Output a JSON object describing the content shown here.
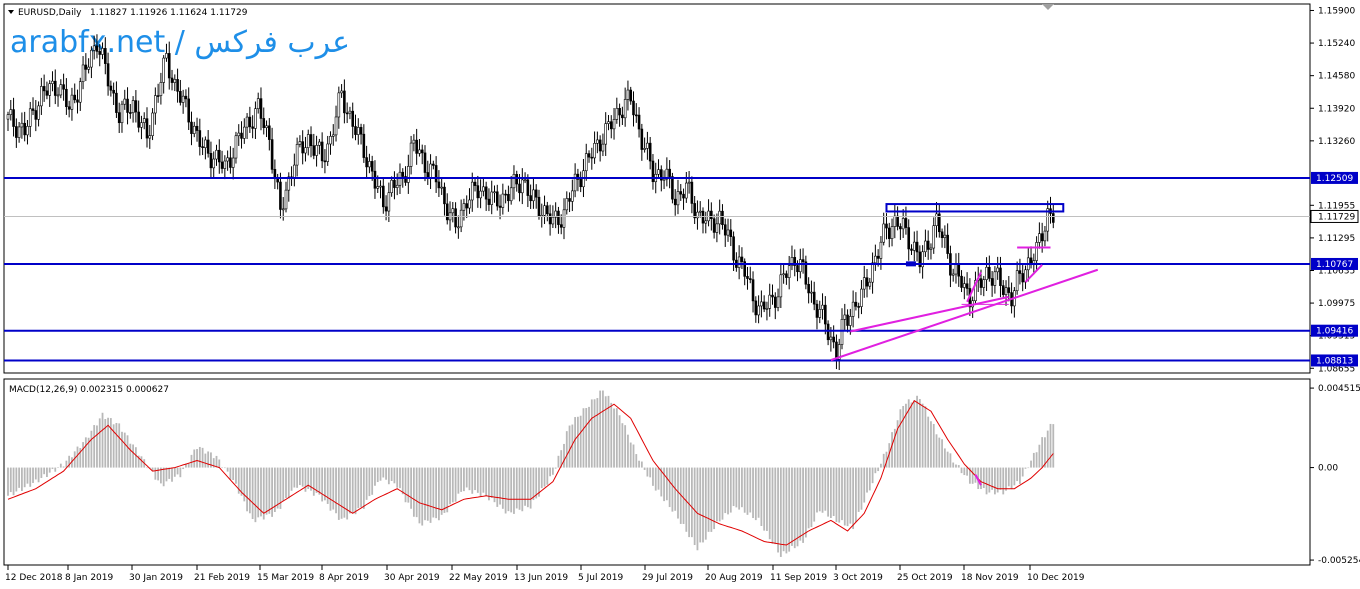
{
  "header": {
    "symbol": "EURUSD,Daily",
    "ohlc": "1.11827 1.11926 1.11624 1.11729"
  },
  "watermark": "arabfx.net / عرب فركس",
  "macd_header": "MACD(12,26,9) 0.002315 0.000627",
  "colors": {
    "candle": "#000000",
    "level_line": "#0000c8",
    "trend_line": "#e020e0",
    "macd_hist": "#b8b8b8",
    "macd_signal": "#e00000",
    "tag_bg": "#0000c8"
  },
  "chart_data": {
    "type": "candlestick",
    "price_axis_ticks": [
      "1.15900",
      "1.15240",
      "1.14580",
      "1.13920",
      "1.13260",
      "1.11955",
      "1.11295",
      "1.10635",
      "1.09975",
      "1.09315",
      "1.08655"
    ],
    "price_range": [
      1.0862,
      1.1595
    ],
    "current_price": "1.11729",
    "horizontal_levels": [
      {
        "price": 1.12509,
        "label": "1.12509"
      },
      {
        "price": 1.10767,
        "label": "1.10767"
      },
      {
        "price": 1.09416,
        "label": "1.09416"
      },
      {
        "price": 1.08813,
        "label": "1.08813"
      }
    ],
    "date_ticks": [
      "12 Dec 2018",
      "8 Jan 2019",
      "30 Jan 2019",
      "21 Feb 2019",
      "15 Mar 2019",
      "8 Apr 2019",
      "30 Apr 2019",
      "22 May 2019",
      "13 Jun 2019",
      "5 Jul 2019",
      "29 Jul 2019",
      "20 Aug 2019",
      "11 Sep 2019",
      "3 Oct 2019",
      "25 Oct 2019",
      "18 Nov 2019",
      "10 Dec 2019"
    ],
    "close_path": [
      [
        0,
        1.137
      ],
      [
        6,
        1.1345
      ],
      [
        12,
        1.142
      ],
      [
        18,
        1.144
      ],
      [
        22,
        1.139
      ],
      [
        28,
        1.147
      ],
      [
        32,
        1.153
      ],
      [
        37,
        1.143
      ],
      [
        40,
        1.138
      ],
      [
        45,
        1.14
      ],
      [
        50,
        1.133
      ],
      [
        53,
        1.141
      ],
      [
        57,
        1.149
      ],
      [
        60,
        1.144
      ],
      [
        64,
        1.139
      ],
      [
        70,
        1.131
      ],
      [
        75,
        1.129
      ],
      [
        78,
        1.127
      ],
      [
        82,
        1.132
      ],
      [
        86,
        1.136
      ],
      [
        90,
        1.139
      ],
      [
        94,
        1.133
      ],
      [
        98,
        1.118
      ],
      [
        103,
        1.129
      ],
      [
        108,
        1.133
      ],
      [
        113,
        1.129
      ],
      [
        116,
        1.133
      ],
      [
        120,
        1.142
      ],
      [
        124,
        1.136
      ],
      [
        128,
        1.131
      ],
      [
        132,
        1.124
      ],
      [
        135,
        1.12
      ],
      [
        138,
        1.123
      ],
      [
        142,
        1.125
      ],
      [
        146,
        1.132
      ],
      [
        150,
        1.128
      ],
      [
        154,
        1.125
      ],
      [
        158,
        1.119
      ],
      [
        161,
        1.115
      ],
      [
        165,
        1.121
      ],
      [
        170,
        1.123
      ],
      [
        175,
        1.12
      ],
      [
        180,
        1.122
      ],
      [
        185,
        1.125
      ],
      [
        188,
        1.121
      ],
      [
        192,
        1.119
      ],
      [
        196,
        1.116
      ],
      [
        200,
        1.118
      ],
      [
        204,
        1.124
      ],
      [
        208,
        1.128
      ],
      [
        212,
        1.132
      ],
      [
        216,
        1.135
      ],
      [
        220,
        1.139
      ],
      [
        224,
        1.141
      ],
      [
        228,
        1.133
      ],
      [
        232,
        1.126
      ],
      [
        236,
        1.126
      ],
      [
        240,
        1.121
      ],
      [
        244,
        1.123
      ],
      [
        248,
        1.118
      ],
      [
        252,
        1.116
      ],
      [
        256,
        1.117
      ],
      [
        259,
        1.113
      ],
      [
        262,
        1.109
      ],
      [
        265,
        1.106
      ],
      [
        268,
        1.101
      ],
      [
        271,
        1.098
      ],
      [
        274,
        1.1
      ],
      [
        277,
        1.102
      ],
      [
        280,
        1.106
      ],
      [
        283,
        1.109
      ],
      [
        286,
        1.106
      ],
      [
        289,
        1.101
      ],
      [
        292,
        1.098
      ],
      [
        295,
        1.094
      ],
      [
        298,
        1.09
      ],
      [
        301,
        1.096
      ],
      [
        304,
        1.099
      ],
      [
        307,
        1.101
      ],
      [
        310,
        1.106
      ],
      [
        313,
        1.11
      ],
      [
        316,
        1.115
      ],
      [
        319,
        1.116
      ],
      [
        322,
        1.115
      ],
      [
        325,
        1.112
      ],
      [
        328,
        1.108
      ],
      [
        331,
        1.112
      ],
      [
        334,
        1.116
      ],
      [
        337,
        1.112
      ],
      [
        340,
        1.106
      ],
      [
        343,
        1.104
      ],
      [
        346,
        1.101
      ],
      [
        349,
        1.103
      ],
      [
        352,
        1.106
      ],
      [
        355,
        1.105
      ],
      [
        358,
        1.103
      ],
      [
        361,
        1.101
      ],
      [
        364,
        1.105
      ],
      [
        367,
        1.108
      ],
      [
        370,
        1.11
      ],
      [
        372,
        1.114
      ],
      [
        374,
        1.118
      ],
      [
        376,
        1.1173
      ]
    ],
    "macd_range": [
      -0.00525,
      0.00452
    ],
    "macd_axis_ticks": [
      "0.004515",
      "0.00",
      "-0.005254"
    ],
    "macd_hist_path": [
      [
        0,
        -0.0016
      ],
      [
        10,
        -0.0008
      ],
      [
        20,
        0.0002
      ],
      [
        28,
        0.0016
      ],
      [
        34,
        0.003
      ],
      [
        40,
        0.0024
      ],
      [
        48,
        0.0006
      ],
      [
        55,
        -0.001
      ],
      [
        62,
        -0.0004
      ],
      [
        68,
        0.0012
      ],
      [
        75,
        0.0006
      ],
      [
        82,
        -0.001
      ],
      [
        88,
        -0.003
      ],
      [
        96,
        -0.0026
      ],
      [
        104,
        -0.001
      ],
      [
        112,
        -0.0016
      ],
      [
        120,
        -0.003
      ],
      [
        128,
        -0.0022
      ],
      [
        134,
        -0.0006
      ],
      [
        140,
        -0.001
      ],
      [
        148,
        -0.0032
      ],
      [
        156,
        -0.0028
      ],
      [
        164,
        -0.0012
      ],
      [
        172,
        -0.0016
      ],
      [
        180,
        -0.0026
      ],
      [
        188,
        -0.0022
      ],
      [
        196,
        -0.0004
      ],
      [
        202,
        0.0024
      ],
      [
        208,
        0.0034
      ],
      [
        214,
        0.0044
      ],
      [
        220,
        0.003
      ],
      [
        226,
        0.0008
      ],
      [
        232,
        -0.001
      ],
      [
        240,
        -0.0026
      ],
      [
        248,
        -0.0046
      ],
      [
        256,
        -0.003
      ],
      [
        262,
        -0.0022
      ],
      [
        270,
        -0.003
      ],
      [
        278,
        -0.005
      ],
      [
        286,
        -0.0042
      ],
      [
        292,
        -0.0024
      ],
      [
        298,
        -0.003
      ],
      [
        304,
        -0.0034
      ],
      [
        310,
        -0.0012
      ],
      [
        316,
        0.001
      ],
      [
        322,
        0.0036
      ],
      [
        328,
        0.004
      ],
      [
        334,
        0.002
      ],
      [
        340,
        0.0004
      ],
      [
        346,
        -0.0008
      ],
      [
        352,
        -0.0014
      ],
      [
        358,
        -0.0014
      ],
      [
        364,
        -0.0008
      ],
      [
        368,
        0.0004
      ],
      [
        372,
        0.0016
      ],
      [
        376,
        0.0026
      ]
    ],
    "macd_signal_path": [
      [
        0,
        -0.0018
      ],
      [
        10,
        -0.0012
      ],
      [
        20,
        -0.0002
      ],
      [
        30,
        0.0016
      ],
      [
        36,
        0.0024
      ],
      [
        44,
        0.001
      ],
      [
        52,
        -0.0002
      ],
      [
        60,
        0.0
      ],
      [
        68,
        0.0004
      ],
      [
        76,
        0.0
      ],
      [
        84,
        -0.0014
      ],
      [
        92,
        -0.0026
      ],
      [
        100,
        -0.0018
      ],
      [
        108,
        -0.001
      ],
      [
        116,
        -0.0018
      ],
      [
        124,
        -0.0026
      ],
      [
        132,
        -0.0018
      ],
      [
        140,
        -0.0012
      ],
      [
        148,
        -0.002
      ],
      [
        156,
        -0.0024
      ],
      [
        164,
        -0.0018
      ],
      [
        172,
        -0.0016
      ],
      [
        180,
        -0.0018
      ],
      [
        188,
        -0.0018
      ],
      [
        196,
        -0.0008
      ],
      [
        204,
        0.0016
      ],
      [
        210,
        0.0028
      ],
      [
        218,
        0.0036
      ],
      [
        224,
        0.0028
      ],
      [
        232,
        0.0004
      ],
      [
        240,
        -0.0012
      ],
      [
        248,
        -0.0026
      ],
      [
        256,
        -0.0032
      ],
      [
        264,
        -0.0036
      ],
      [
        272,
        -0.0042
      ],
      [
        280,
        -0.0044
      ],
      [
        288,
        -0.0036
      ],
      [
        296,
        -0.003
      ],
      [
        302,
        -0.0036
      ],
      [
        308,
        -0.0026
      ],
      [
        314,
        -0.0006
      ],
      [
        320,
        0.0022
      ],
      [
        326,
        0.0038
      ],
      [
        332,
        0.0032
      ],
      [
        338,
        0.0016
      ],
      [
        344,
        0.0002
      ],
      [
        350,
        -0.0008
      ],
      [
        356,
        -0.0012
      ],
      [
        362,
        -0.0012
      ],
      [
        368,
        -0.0006
      ],
      [
        372,
        0.0
      ],
      [
        376,
        0.0008
      ]
    ]
  }
}
